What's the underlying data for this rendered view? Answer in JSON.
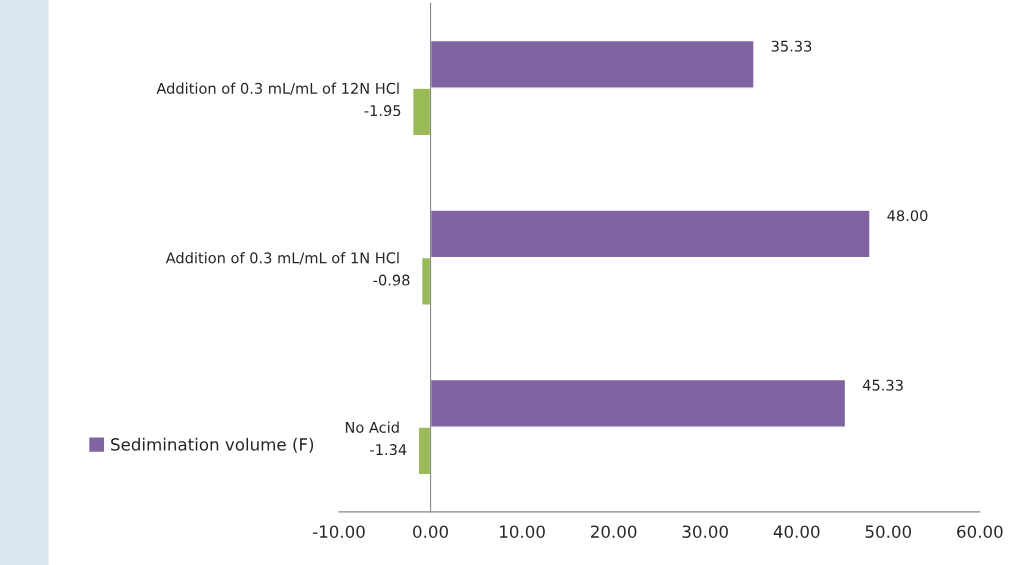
{
  "chart_data": {
    "type": "bar",
    "orientation": "horizontal",
    "categories": [
      "Addition of 0.3 mL/mL of 12N HCl",
      "Addition of 0.3 mL/mL of 1N HCl",
      "No Acid"
    ],
    "series": [
      {
        "name": "Sedimination volume (F)",
        "color": "#8064a2",
        "values": [
          35.33,
          48.0,
          45.33
        ],
        "value_labels": [
          "35.33",
          "48.00",
          "45.33"
        ]
      },
      {
        "color": "#9bbb59",
        "values": [
          -1.95,
          -0.98,
          -1.34
        ],
        "value_labels": [
          "-1.95",
          "-0.98",
          "-1.34"
        ]
      }
    ],
    "xlim": [
      -10,
      60
    ],
    "xticks": [
      {
        "value": -10,
        "label": "-10.00"
      },
      {
        "value": 0,
        "label": "0.00"
      },
      {
        "value": 10,
        "label": "10.00"
      },
      {
        "value": 20,
        "label": "20.00"
      },
      {
        "value": 30,
        "label": "30.00"
      },
      {
        "value": 40,
        "label": "40.00"
      },
      {
        "value": 50,
        "label": "50.00"
      },
      {
        "value": 60,
        "label": "60.00"
      }
    ],
    "grid": false,
    "legend": "bottom left"
  }
}
